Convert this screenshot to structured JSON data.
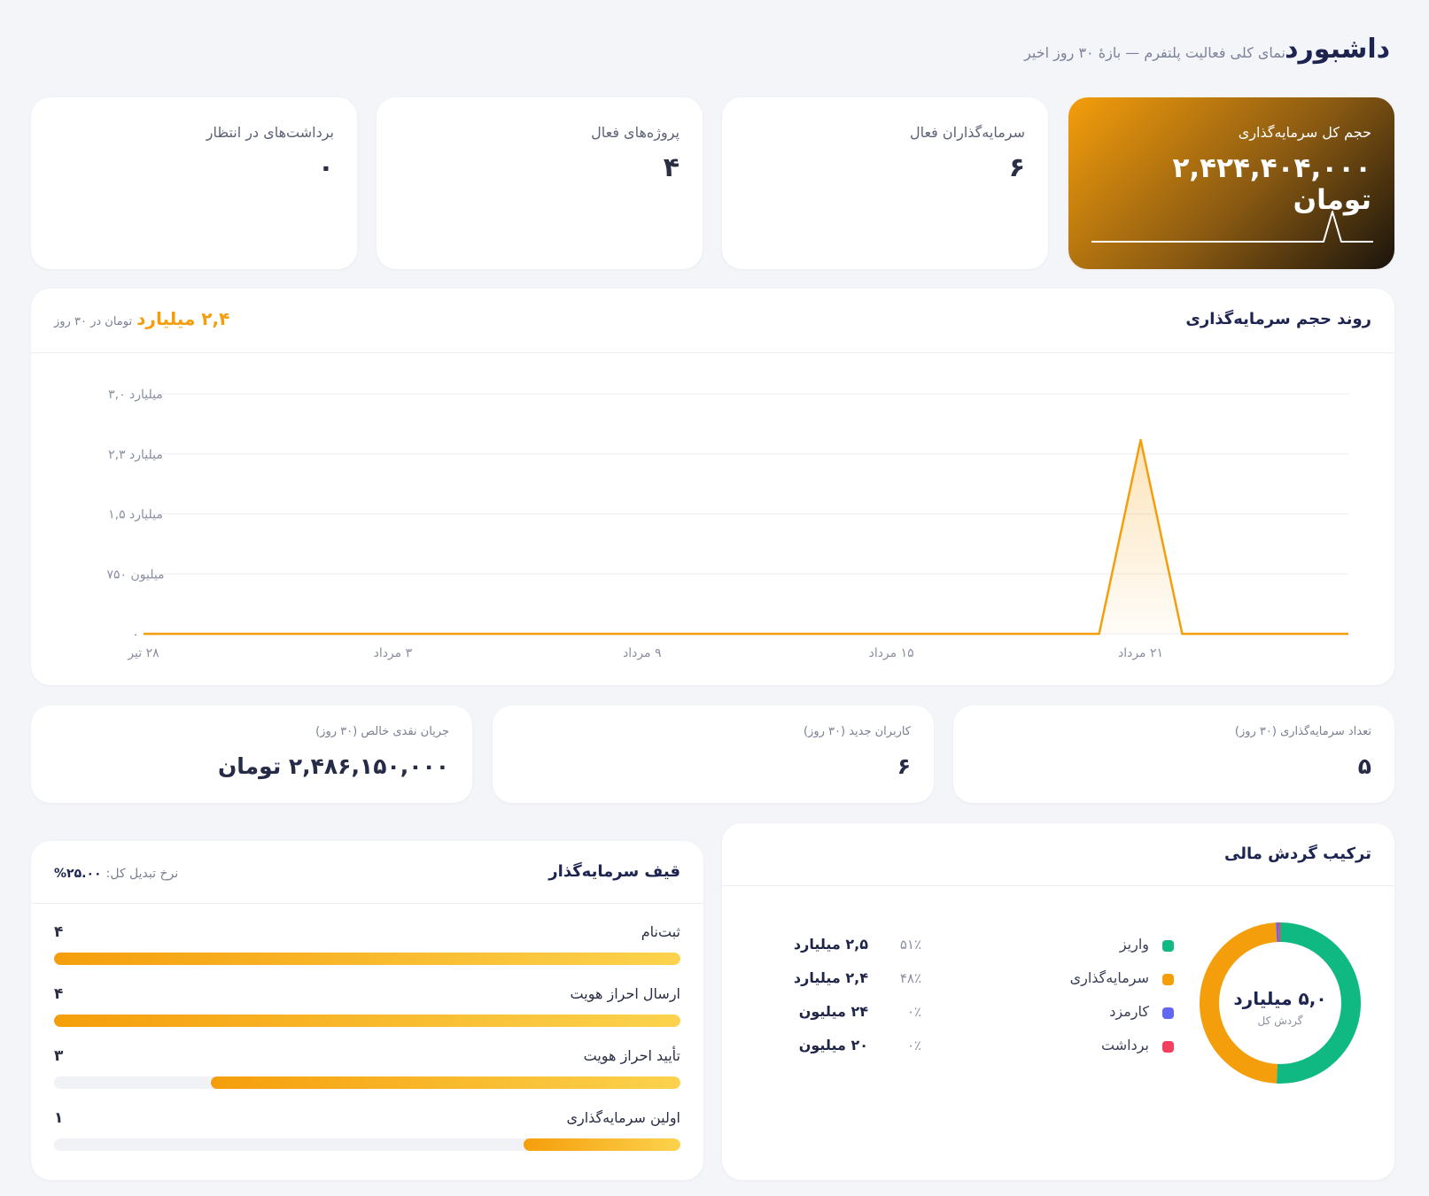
{
  "header": {
    "title": "داشبورد",
    "subtitle": "نمای کلی فعالیت پلتفرم — بازهٔ ۳۰ روز اخیر"
  },
  "kpis": [
    {
      "label": "حجم کل سرمایه‌گذاری",
      "value": "۲,۴۲۴,۴۰۴,۰۰۰ تومان"
    },
    {
      "label": "سرمایه‌گذاران فعال",
      "value": "۶"
    },
    {
      "label": "پروژه‌های فعال",
      "value": "۴"
    },
    {
      "label": "برداشت‌های در انتظار",
      "value": "۰"
    }
  ],
  "trend": {
    "title": "روند حجم سرمایه‌گذاری",
    "total_value": "۲,۴ میلیارد",
    "total_suffix": "تومان در ۳۰ روز"
  },
  "chart_data": {
    "type": "area",
    "y_ticks": [
      "۳,۰ میلیارد",
      "۲,۳ میلیارد",
      "۱,۵ میلیارد",
      "۷۵۰ میلیون",
      "۰"
    ],
    "y_tick_values": [
      3000000000,
      2250000000,
      1500000000,
      750000000,
      0
    ],
    "x_ticks": [
      "۲۸ تیر",
      "۳ مرداد",
      "۹ مرداد",
      "۱۵ مرداد",
      "۲۱ مرداد"
    ],
    "x_tick_days": [
      1,
      7,
      13,
      19,
      25
    ],
    "ylim": [
      0,
      3000000000
    ],
    "grid": true,
    "color": "#f59e0b",
    "series": [
      {
        "x": [
          1,
          2,
          3,
          4,
          5,
          6,
          7,
          8,
          9,
          10,
          11,
          12,
          13,
          14,
          15,
          16,
          17,
          18,
          19,
          20,
          21,
          22,
          23,
          24,
          25,
          26,
          27,
          28,
          29,
          30
        ],
        "values": [
          0,
          0,
          0,
          0,
          0,
          0,
          0,
          0,
          0,
          0,
          0,
          0,
          0,
          0,
          0,
          0,
          0,
          0,
          0,
          0,
          0,
          0,
          0,
          0,
          2424404000,
          0,
          0,
          0,
          0,
          0
        ]
      }
    ]
  },
  "small_kpis": [
    {
      "label": "تعداد سرمایه‌گذاری (۳۰ روز)",
      "value": "۵"
    },
    {
      "label": "کاربران جدید (۳۰ روز)",
      "value": "۶"
    },
    {
      "label": "جریان نقدی خالص (۳۰ روز)",
      "value": "۲,۴۸۶,۱۵۰,۰۰۰ تومان"
    }
  ],
  "composition": {
    "title": "ترکیب گردش مالی",
    "center_value": "۵,۰ میلیارد",
    "center_label": "گردش کل",
    "items": [
      {
        "name": "واریز",
        "pct": "۵۱٪",
        "amount": "۲,۵ میلیارد",
        "share": 0.507,
        "color": "#10b981"
      },
      {
        "name": "سرمایه‌گذاری",
        "pct": "۴۸٪",
        "amount": "۲,۴ میلیارد",
        "share": 0.484,
        "color": "#f59e0b"
      },
      {
        "name": "کارمزد",
        "pct": "۰٪",
        "amount": "۲۴ میلیون",
        "share": 0.005,
        "color": "#6366f1"
      },
      {
        "name": "برداشت",
        "pct": "۰٪",
        "amount": "۲۰ میلیون",
        "share": 0.004,
        "color": "#f43f5e"
      }
    ]
  },
  "funnel": {
    "title": "قیف سرمایه‌گذار",
    "conversion_label": "نرخ تبدیل کل:",
    "conversion_value": "۲۵.۰۰%",
    "steps": [
      {
        "label": "ثبت‌نام",
        "count": "۴",
        "fraction": 1.0
      },
      {
        "label": "ارسال احراز هویت",
        "count": "۴",
        "fraction": 1.0
      },
      {
        "label": "تأیید احراز هویت",
        "count": "۳",
        "fraction": 0.75
      },
      {
        "label": "اولین سرمایه‌گذاری",
        "count": "۱",
        "fraction": 0.25
      }
    ]
  }
}
